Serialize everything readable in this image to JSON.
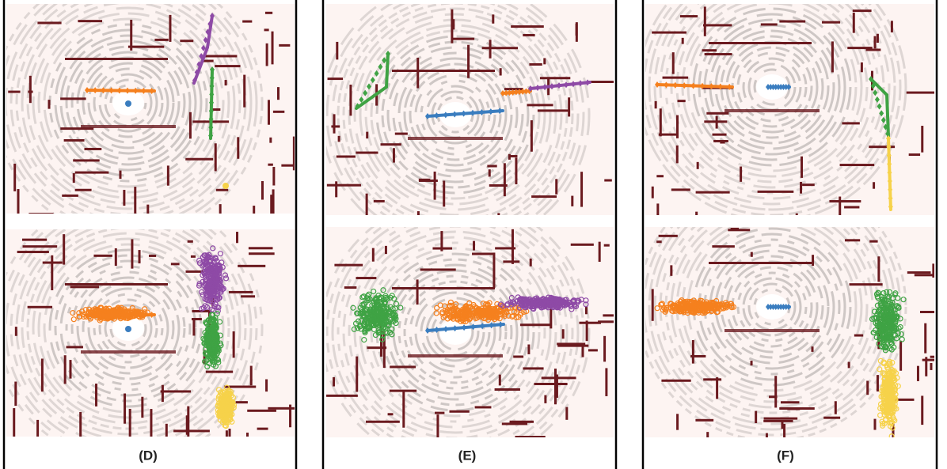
{
  "panels": [
    {
      "label": "(D)"
    },
    {
      "label": "(E)"
    },
    {
      "label": "(F)"
    }
  ]
}
